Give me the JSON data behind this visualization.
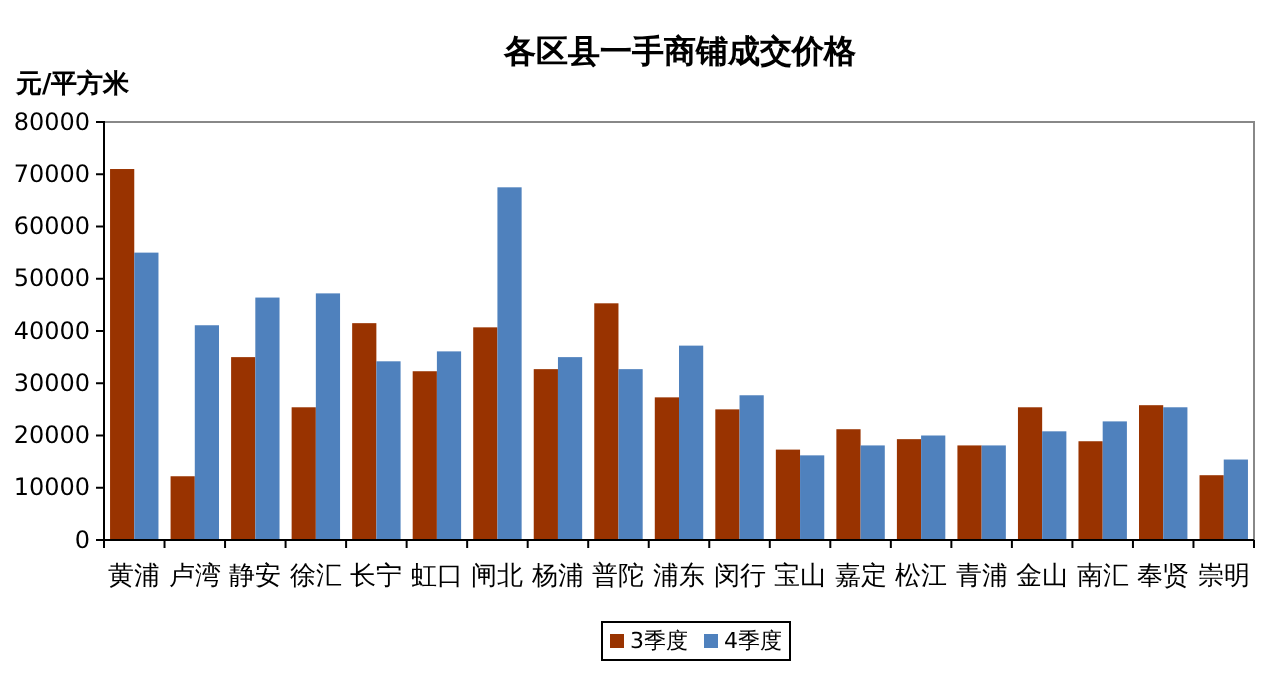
{
  "chart_data": {
    "type": "bar",
    "title": "各区县一手商铺成交价格",
    "ylabel": "元/平方米",
    "categories": [
      "黄浦",
      "卢湾",
      "静安",
      "徐汇",
      "长宁",
      "虹口",
      "闸北",
      "杨浦",
      "普陀",
      "浦东",
      "闵行",
      "宝山",
      "嘉定",
      "松江",
      "青浦",
      "金山",
      "南汇",
      "奉贤",
      "崇明"
    ],
    "series": [
      {
        "name": "3季度",
        "color": "#993300",
        "values": [
          71000,
          12200,
          35000,
          25400,
          41500,
          32300,
          40700,
          32700,
          45300,
          27300,
          25000,
          17300,
          21200,
          19300,
          18100,
          25400,
          18900,
          25800,
          12400
        ]
      },
      {
        "name": "4季度",
        "color": "#4f81bd",
        "values": [
          55000,
          41100,
          46400,
          47200,
          34200,
          36100,
          67500,
          35000,
          32700,
          37200,
          27700,
          16200,
          18100,
          20000,
          18100,
          20800,
          22700,
          25400,
          15400
        ]
      }
    ],
    "ylim": [
      0,
      80000
    ],
    "yticks": [
      0,
      10000,
      20000,
      30000,
      40000,
      50000,
      60000,
      70000,
      80000
    ],
    "grid": false,
    "legend": "bottom"
  }
}
